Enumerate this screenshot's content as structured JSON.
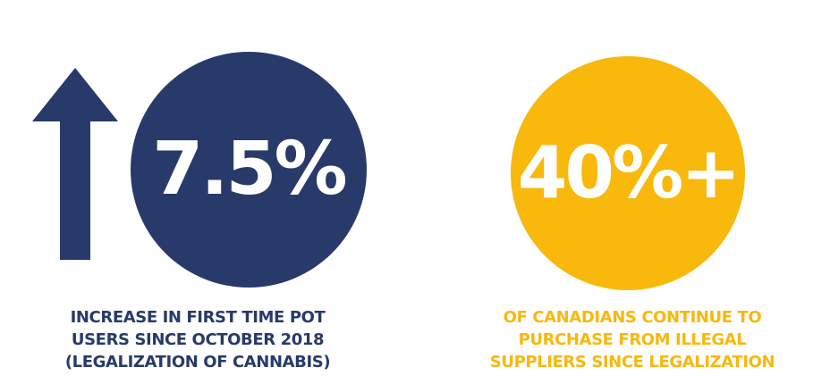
{
  "colors": {
    "navy": "#283a6a",
    "yellow": "#f8b80c",
    "white": "#ffffff"
  },
  "left_stat": {
    "icon": "up-arrow-icon",
    "value": "7.5%",
    "caption_lines": [
      "INCREASE IN FIRST TIME POT",
      "USERS SINCE OCTOBER 2018",
      "(LEGALIZATION OF CANNABIS)"
    ]
  },
  "right_stat": {
    "value": "40%+",
    "caption_lines": [
      "OF CANADIANS CONTINUE TO",
      "PURCHASE FROM ILLEGAL",
      "SUPPLIERS SINCE LEGALIZATION"
    ]
  }
}
